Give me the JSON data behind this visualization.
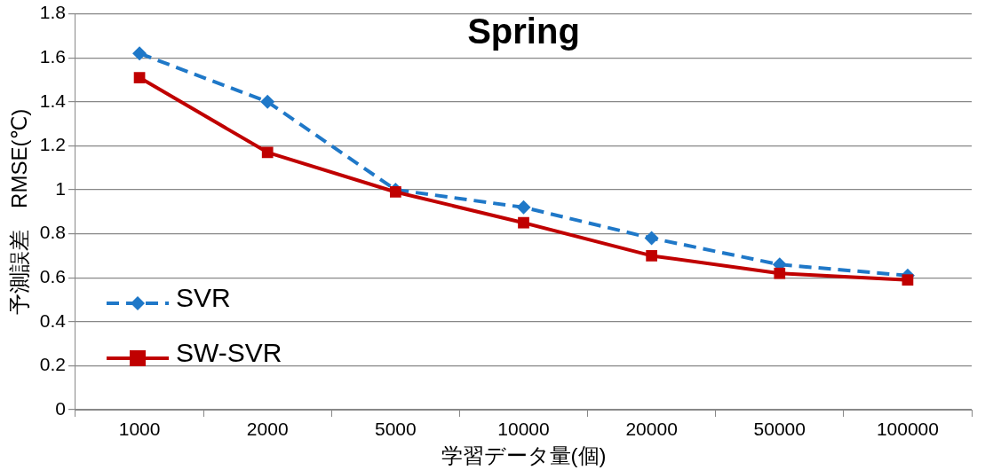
{
  "chart_data": {
    "type": "line",
    "title": "Spring",
    "xlabel": "学習データ量(個)",
    "ylabel": "予測誤差　RMSE(℃)",
    "categories": [
      "1000",
      "2000",
      "5000",
      "10000",
      "20000",
      "50000",
      "100000"
    ],
    "series": [
      {
        "name": "SVR",
        "color": "#1f78c8",
        "marker": "diamond",
        "line_style": "dashed",
        "values": [
          1.62,
          1.4,
          1.0,
          0.92,
          0.78,
          0.66,
          0.61
        ]
      },
      {
        "name": "SW-SVR",
        "color": "#c00000",
        "marker": "square",
        "line_style": "solid",
        "values": [
          1.51,
          1.17,
          0.99,
          0.85,
          0.7,
          0.62,
          0.59
        ]
      }
    ],
    "ylim": [
      0,
      1.8
    ],
    "yticks": [
      0,
      0.2,
      0.4,
      0.6,
      0.8,
      1,
      1.2,
      1.4,
      1.6,
      1.8
    ],
    "grid": "y",
    "legend": "bottom left"
  }
}
